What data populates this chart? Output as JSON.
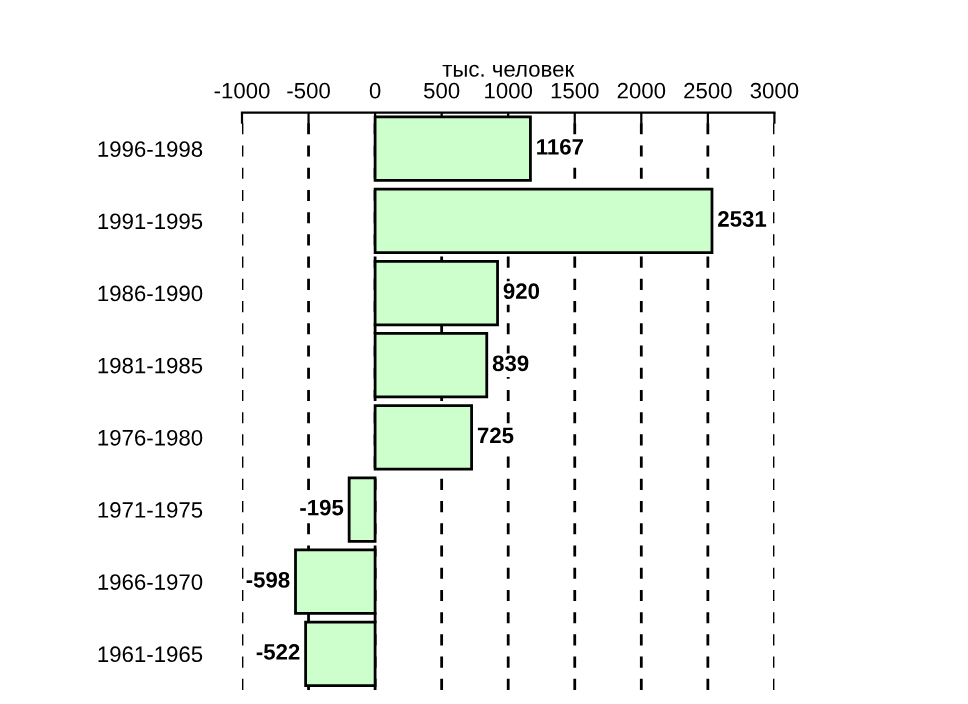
{
  "chart_data": {
    "type": "bar",
    "orientation": "horizontal",
    "xlabel": "тыс. человек",
    "categories": [
      "1996-1998",
      "1991-1995",
      "1986-1990",
      "1981-1985",
      "1976-1980",
      "1971-1975",
      "1966-1970",
      "1961-1965"
    ],
    "values": [
      1167,
      2531,
      920,
      839,
      725,
      -195,
      -598,
      -522
    ],
    "color": "#ccffcc",
    "xlim": [
      -1000,
      3000
    ],
    "xticks": [
      -1000,
      -500,
      0,
      500,
      1000,
      1500,
      2000,
      2500,
      3000
    ],
    "grid": "x",
    "line_style": "dashed",
    "data_labels": true
  }
}
